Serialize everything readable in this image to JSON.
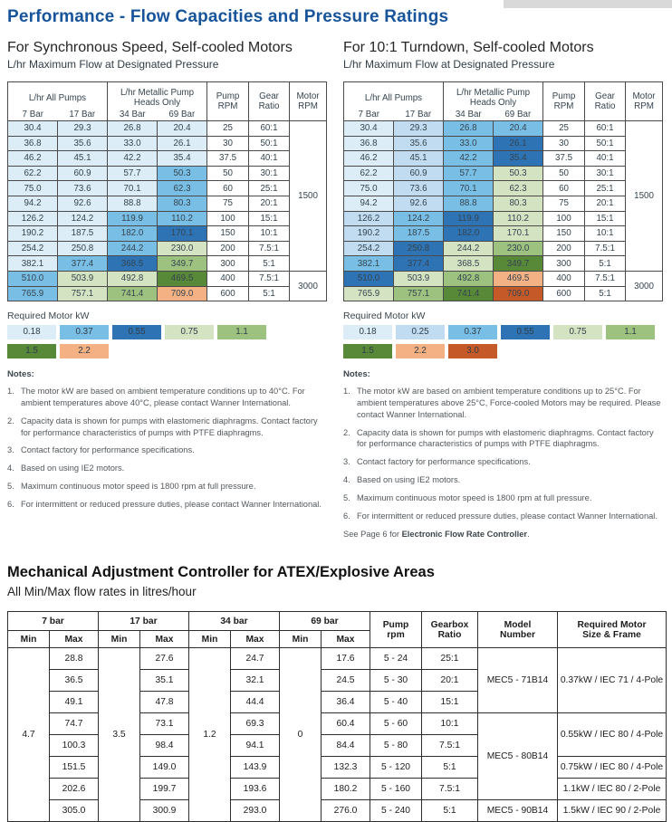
{
  "title": "Performance - Flow Capacities and Pressure Ratings",
  "kw_colors": {
    "0.18": "#dcedf8",
    "0.25": "#c1dcf0",
    "0.37": "#79bee5",
    "0.55": "#2e74b5",
    "0.75": "#d4e4c3",
    "1.1": "#9dc280",
    "1.5": "#588939",
    "2.2": "#f4b183",
    "3.0": "#c55a28"
  },
  "flow_header": {
    "group1": "L/hr All Pumps",
    "group1_bars": [
      "7 Bar",
      "17 Bar"
    ],
    "group2": "L/hr Metallic Pump\nHeads Only",
    "group2_bars": [
      "34 Bar",
      "69 Bar"
    ],
    "cols": [
      "Pump\nRPM",
      "Gear\nRatio",
      "Motor\nRPM"
    ]
  },
  "flow_rows": [
    {
      "flows": [
        "30.4",
        "29.3",
        "26.8",
        "20.4"
      ],
      "rpm": "25",
      "ratio": "60:1"
    },
    {
      "flows": [
        "36.8",
        "35.6",
        "33.0",
        "26.1"
      ],
      "rpm": "30",
      "ratio": "50:1"
    },
    {
      "flows": [
        "46.2",
        "45.1",
        "42.2",
        "35.4"
      ],
      "rpm": "37.5",
      "ratio": "40:1"
    },
    {
      "flows": [
        "62.2",
        "60.9",
        "57.7",
        "50.3"
      ],
      "rpm": "50",
      "ratio": "30:1"
    },
    {
      "flows": [
        "75.0",
        "73.6",
        "70.1",
        "62.3"
      ],
      "rpm": "60",
      "ratio": "25:1"
    },
    {
      "flows": [
        "94.2",
        "92.6",
        "88.8",
        "80.3"
      ],
      "rpm": "75",
      "ratio": "20:1"
    },
    {
      "flows": [
        "126.2",
        "124.2",
        "119.9",
        "110.2"
      ],
      "rpm": "100",
      "ratio": "15:1"
    },
    {
      "flows": [
        "190.2",
        "187.5",
        "182.0",
        "170.1"
      ],
      "rpm": "150",
      "ratio": "10:1"
    },
    {
      "flows": [
        "254.2",
        "250.8",
        "244.2",
        "230.0"
      ],
      "rpm": "200",
      "ratio": "7.5:1"
    },
    {
      "flows": [
        "382.1",
        "377.4",
        "368.5",
        "349.7"
      ],
      "rpm": "300",
      "ratio": "5:1"
    },
    {
      "flows": [
        "510.0",
        "503.9",
        "492.8",
        "469.5"
      ],
      "rpm": "400",
      "ratio": "7.5:1"
    },
    {
      "flows": [
        "765.9",
        "757.1",
        "741.4",
        "709.0"
      ],
      "rpm": "600",
      "ratio": "5:1"
    }
  ],
  "motor_rpm_groups": [
    {
      "label": "1500",
      "span": 10
    },
    {
      "label": "3000",
      "span": 2
    }
  ],
  "sections": [
    {
      "heading": "For Synchronous Speed, Self-cooled Motors",
      "subheading": "L/hr Maximum Flow at Designated Pressure",
      "legend_title": "Required Motor kW",
      "legend_rows": [
        [
          "0.18",
          "0.37",
          "0.55",
          "0.75",
          "1.1"
        ],
        [
          "1.5",
          "2.2"
        ]
      ],
      "kw": [
        [
          "0.18",
          "0.18",
          "0.18",
          "0.18"
        ],
        [
          "0.18",
          "0.18",
          "0.18",
          "0.18"
        ],
        [
          "0.18",
          "0.18",
          "0.18",
          "0.18"
        ],
        [
          "0.18",
          "0.18",
          "0.18",
          "0.37"
        ],
        [
          "0.18",
          "0.18",
          "0.18",
          "0.37"
        ],
        [
          "0.18",
          "0.18",
          "0.18",
          "0.37"
        ],
        [
          "0.18",
          "0.18",
          "0.37",
          "0.37"
        ],
        [
          "0.18",
          "0.18",
          "0.37",
          "0.55"
        ],
        [
          "0.18",
          "0.18",
          "0.37",
          "0.75"
        ],
        [
          "0.18",
          "0.37",
          "0.55",
          "1.1"
        ],
        [
          "0.37",
          "0.75",
          "0.75",
          "1.5"
        ],
        [
          "0.37",
          "0.75",
          "1.1",
          "2.2"
        ]
      ],
      "notes": {
        "title": "Notes:",
        "items": [
          "The motor kW are based on ambient temperature conditions up to 40°C. For ambient temperatures above 40°C, please contact Wanner International.",
          "Capacity data is shown for pumps with elastomeric diaphragms. Contact factory for performance characteristics of pumps with PTFE diaphragms.",
          "Contact factory for performance specifications.",
          "Based on using IE2 motors.",
          "Maximum continuous motor speed is 1800 rpm at full pressure.",
          "For intermittent or reduced pressure duties, please contact Wanner International."
        ]
      }
    },
    {
      "heading": "For 10:1 Turndown, Self-cooled Motors",
      "subheading": "L/hr Maximum Flow at Designated Pressure",
      "legend_title": "Required Motor kW",
      "legend_rows": [
        [
          "0.18",
          "0.25",
          "0.37",
          "0.55",
          "0.75",
          "1.1"
        ],
        [
          "1.5",
          "2.2",
          "3.0"
        ]
      ],
      "kw": [
        [
          "0.18",
          "0.25",
          "0.37",
          "0.37"
        ],
        [
          "0.18",
          "0.25",
          "0.37",
          "0.55"
        ],
        [
          "0.18",
          "0.25",
          "0.37",
          "0.55"
        ],
        [
          "0.18",
          "0.25",
          "0.37",
          "0.75"
        ],
        [
          "0.18",
          "0.25",
          "0.37",
          "0.75"
        ],
        [
          "0.18",
          "0.25",
          "0.37",
          "0.75"
        ],
        [
          "0.25",
          "0.37",
          "0.55",
          "0.75"
        ],
        [
          "0.25",
          "0.37",
          "0.55",
          "0.75"
        ],
        [
          "0.25",
          "0.55",
          "0.75",
          "1.1"
        ],
        [
          "0.37",
          "0.55",
          "0.75",
          "1.5"
        ],
        [
          "0.55",
          "0.75",
          "1.1",
          "2.2"
        ],
        [
          "0.75",
          "1.1",
          "1.5",
          "3.0"
        ]
      ],
      "notes": {
        "title": "Notes:",
        "items": [
          "The motor kW are based on ambient temperature conditions up to 25°C. For ambient temperatures above 25°C, Force-cooled Motors may be required. Please contact Wanner International.",
          "Capacity data is shown for pumps with elastomeric diaphragms. Contact factory for performance characteristics of pumps with PTFE diaphragms.",
          "Contact factory for performance specifications.",
          "Based on using IE2 motors.",
          "Maximum continuous motor speed is 1800 rpm at full pressure.",
          "For intermittent or reduced pressure duties, please contact Wanner International."
        ],
        "see": {
          "prefix": "See Page 6 for ",
          "bold": "Electronic Flow Rate Controller",
          "suffix": "."
        }
      }
    }
  ],
  "bottom": {
    "heading": "Mechanical Adjustment Controller for ATEX/Explosive Areas",
    "subheading": "All Min/Max flow rates in litres/hour",
    "header": {
      "bar_groups": [
        "7 bar",
        "17 bar",
        "34 bar",
        "69 bar"
      ],
      "min": "Min",
      "max": "Max",
      "cols": [
        "Pump\nrpm",
        "Gearbox\nRatio",
        "Model\nNumber",
        "Required Motor\nSize & Frame"
      ]
    },
    "mins": [
      "4.7",
      "3.5",
      "1.2",
      "0"
    ],
    "rows": [
      {
        "max": [
          "28.8",
          "27.6",
          "24.7",
          "17.6"
        ],
        "rpm": "5 - 24",
        "ratio": "25:1",
        "model": {
          "label": "MEC5 - 71B14",
          "span": 3
        },
        "motor": {
          "label": "0.37kW / IEC 71 / 4-Pole",
          "span": 3
        }
      },
      {
        "max": [
          "36.5",
          "35.1",
          "32.1",
          "24.5"
        ],
        "rpm": "5 - 30",
        "ratio": "20:1"
      },
      {
        "max": [
          "49.1",
          "47.8",
          "44.4",
          "36.4"
        ],
        "rpm": "5 - 40",
        "ratio": "15:1"
      },
      {
        "max": [
          "74.7",
          "73.1",
          "69.3",
          "60.4"
        ],
        "rpm": "5 - 60",
        "ratio": "10:1",
        "model": {
          "label": "MEC5 - 80B14",
          "span": 4
        },
        "motor": {
          "label": "0.55kW / IEC 80 / 4-Pole",
          "span": 2
        }
      },
      {
        "max": [
          "100.3",
          "98.4",
          "94.1",
          "84.4"
        ],
        "rpm": "5 - 80",
        "ratio": "7.5:1"
      },
      {
        "max": [
          "151.5",
          "149.0",
          "143.9",
          "132.3"
        ],
        "rpm": "5 - 120",
        "ratio": "5:1",
        "motor": {
          "label": "0.75kW / IEC 80 / 4-Pole",
          "span": 1
        }
      },
      {
        "max": [
          "202.6",
          "199.7",
          "193.6",
          "180.2"
        ],
        "rpm": "5 - 160",
        "ratio": "7.5:1",
        "motor": {
          "label": "1.1kW / IEC 80 / 2-Pole",
          "span": 1
        }
      },
      {
        "max": [
          "305.0",
          "300.9",
          "293.0",
          "276.0"
        ],
        "rpm": "5 - 240",
        "ratio": "5:1",
        "model": {
          "label": "MEC5 - 90B14",
          "span": 1
        },
        "motor": {
          "label": "1.5kW / IEC 90 / 2-Pole",
          "span": 1
        }
      }
    ]
  }
}
